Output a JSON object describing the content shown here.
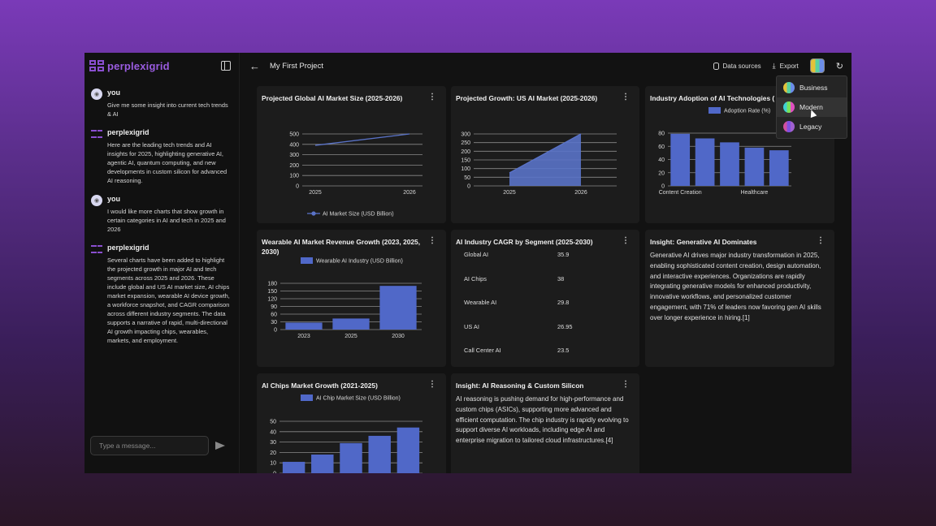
{
  "app": {
    "logo_text": "perplexigrid",
    "project_title": "My First Project",
    "data_sources_label": "Data sources",
    "export_label": "Export"
  },
  "chat": {
    "messages": [
      {
        "author": "you",
        "text": "Give me some insight into current tech trends & AI"
      },
      {
        "author": "perplexigrid",
        "text": "Here are the leading tech trends and AI insights for 2025, highlighting generative AI, agentic AI, quantum computing, and new developments in custom silicon for advanced AI reasoning."
      },
      {
        "author": "you",
        "text": "I would like more charts that show growth in certain categories in AI and tech in 2025 and 2026"
      },
      {
        "author": "perplexigrid",
        "text": "Several charts have been added to highlight the projected growth in major AI and tech segments across 2025 and 2026. These include global and US AI market size, AI chips market expansion, wearable AI device growth, a workforce snapshot, and CAGR comparison across different industry segments. The data supports a narrative of rapid, multi-directional AI growth impacting chips, wearables, markets, and employment."
      }
    ],
    "input_placeholder": "Type a message..."
  },
  "theme_menu": {
    "items": [
      {
        "label": "Business",
        "swatch": "sw-business"
      },
      {
        "label": "Modern",
        "swatch": "sw-modern"
      },
      {
        "label": "Legacy",
        "swatch": "sw-legacy"
      }
    ],
    "hovered": "Modern"
  },
  "cards": {
    "global_ai": {
      "title": "Projected Global AI Market Size (2025-2026)"
    },
    "us_ai": {
      "title": "Projected Growth: US AI Market (2025-2026)"
    },
    "adoption": {
      "title": "Industry Adoption of AI Technologies ("
    },
    "wearable": {
      "title": "Wearable AI Market Revenue Growth (2023, 2025, 2030)"
    },
    "cagr": {
      "title": "AI Industry CAGR by Segment (2025-2030)"
    },
    "insight_genai": {
      "title": "Insight: Generative AI Dominates",
      "text": "Generative AI drives major industry transformation in 2025, enabling sophisticated content creation, design automation, and interactive experiences. Organizations are rapidly integrating generative models for enhanced productivity, innovative workflows, and personalized customer engagement, with 71% of leaders now favoring gen AI skills over longer experience in hiring.[1]"
    },
    "chips": {
      "title": "AI Chips Market Growth (2021-2025)"
    },
    "insight_chips": {
      "title": "Insight: AI Reasoning & Custom Silicon",
      "text": "AI reasoning is pushing demand for high-performance and custom chips (ASICs), supporting more advanced and efficient computation. The chip industry is rapidly evolving to support diverse AI workloads, including edge AI and enterprise migration to tailored cloud infrastructures.[4]"
    }
  },
  "chart_data": [
    {
      "id": "global_ai",
      "type": "line",
      "title": "Projected Global AI Market Size (2025-2026)",
      "categories": [
        "2025",
        "2026"
      ],
      "series": [
        {
          "name": "AI Market Size (USD Billion)",
          "values": [
            390,
            500
          ]
        }
      ],
      "ylim": [
        0,
        500
      ],
      "yticks": [
        0,
        100,
        200,
        300,
        400,
        500
      ],
      "legend": "bottom",
      "grid": true,
      "color": "#5a73c8"
    },
    {
      "id": "us_ai",
      "type": "area",
      "title": "Projected Growth: US AI Market (2025-2026)",
      "categories": [
        "2025",
        "2026"
      ],
      "series": [
        {
          "values": [
            75,
            300
          ]
        }
      ],
      "ylim": [
        0,
        300
      ],
      "yticks": [
        0,
        50,
        100,
        150,
        200,
        250,
        300
      ],
      "grid": true,
      "color": "#5a73c8"
    },
    {
      "id": "adoption",
      "type": "bar",
      "title": "Industry Adoption of AI Technologies (",
      "categories": [
        "Content Creation",
        "",
        "",
        "Healthcare",
        ""
      ],
      "series": [
        {
          "name": "Adoption Rate (%)",
          "values": [
            79,
            72,
            66,
            58,
            54
          ]
        }
      ],
      "ylim": [
        0,
        80
      ],
      "yticks": [
        0,
        20,
        40,
        60,
        80
      ],
      "legend": "top",
      "grid": true,
      "color": "#5068c8"
    },
    {
      "id": "wearable",
      "type": "bar",
      "title": "Wearable AI Market Revenue Growth (2023, 2025, 2030)",
      "categories": [
        "2023",
        "2025",
        "2030"
      ],
      "series": [
        {
          "name": "Wearable AI Industry (USD Billion)",
          "values": [
            27,
            43,
            170
          ]
        }
      ],
      "ylim": [
        0,
        180
      ],
      "yticks": [
        0,
        30,
        60,
        90,
        120,
        150,
        180
      ],
      "legend": "top",
      "grid": true,
      "color": "#5068c8"
    },
    {
      "id": "cagr",
      "type": "table",
      "title": "AI Industry CAGR by Segment (2025-2030)",
      "rows": [
        {
          "segment": "Global AI",
          "value": "35.9"
        },
        {
          "segment": "AI Chips",
          "value": "38"
        },
        {
          "segment": "Wearable AI",
          "value": "29.8"
        },
        {
          "segment": "US AI",
          "value": "26.95"
        },
        {
          "segment": "Call Center AI",
          "value": "23.5"
        }
      ]
    },
    {
      "id": "chips",
      "type": "bar",
      "title": "AI Chips Market Growth (2021-2025)",
      "categories": [
        "",
        "",
        "",
        "",
        ""
      ],
      "series": [
        {
          "name": "AI Chip Market Size (USD Billion)",
          "values": [
            11,
            18,
            29,
            36,
            44
          ]
        }
      ],
      "ylim": [
        0,
        50
      ],
      "yticks": [
        0,
        10,
        20,
        30,
        40,
        50
      ],
      "legend": "top",
      "grid": true,
      "color": "#5068c8"
    }
  ]
}
